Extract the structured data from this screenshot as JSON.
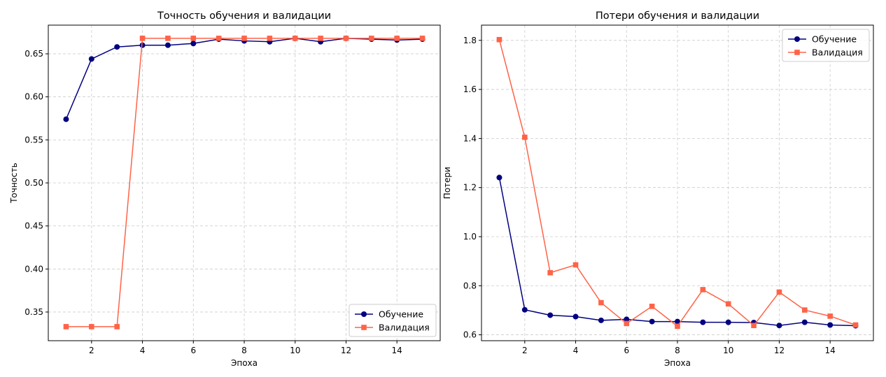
{
  "chart_data": [
    {
      "type": "line",
      "title": "Точность обучения и валидации",
      "xlabel": "Эпоха",
      "ylabel": "Точность",
      "xlim": [
        0.3,
        15.7
      ],
      "ylim": [
        0.3167,
        0.6833
      ],
      "xticks": [
        2,
        4,
        6,
        8,
        10,
        12,
        14
      ],
      "yticks": [
        0.35,
        0.4,
        0.45,
        0.5,
        0.55,
        0.6,
        0.65
      ],
      "ytick_labels": [
        "0.35",
        "0.40",
        "0.45",
        "0.50",
        "0.55",
        "0.60",
        "0.65"
      ],
      "grid": true,
      "legend_position": "lower-right",
      "x": [
        1,
        2,
        3,
        4,
        5,
        6,
        7,
        8,
        9,
        10,
        11,
        12,
        13,
        14,
        15
      ],
      "series": [
        {
          "name": "Обучение",
          "color": "#000080",
          "marker": "circle",
          "values": [
            0.574,
            0.644,
            0.658,
            0.66,
            0.66,
            0.662,
            0.667,
            0.665,
            0.664,
            0.668,
            0.664,
            0.668,
            0.667,
            0.666,
            0.667
          ]
        },
        {
          "name": "Валидация",
          "color": "#ff6347",
          "marker": "square",
          "values": [
            0.333,
            0.333,
            0.333,
            0.668,
            0.668,
            0.668,
            0.668,
            0.668,
            0.668,
            0.668,
            0.668,
            0.668,
            0.668,
            0.668,
            0.668
          ]
        }
      ]
    },
    {
      "type": "line",
      "title": "Потери обучения и валидации",
      "xlabel": "Эпоха",
      "ylabel": "Потери",
      "xlim": [
        0.3,
        15.7
      ],
      "ylim": [
        0.576,
        1.862
      ],
      "xticks": [
        2,
        4,
        6,
        8,
        10,
        12,
        14
      ],
      "yticks": [
        0.6,
        0.8,
        1.0,
        1.2,
        1.4,
        1.6,
        1.8
      ],
      "ytick_labels": [
        "0.6",
        "0.8",
        "1.0",
        "1.2",
        "1.4",
        "1.6",
        "1.8"
      ],
      "grid": true,
      "legend_position": "upper-right",
      "x": [
        1,
        2,
        3,
        4,
        5,
        6,
        7,
        8,
        9,
        10,
        11,
        12,
        13,
        14,
        15
      ],
      "series": [
        {
          "name": "Обучение",
          "color": "#000080",
          "marker": "circle",
          "values": [
            1.241,
            0.702,
            0.68,
            0.674,
            0.659,
            0.663,
            0.654,
            0.654,
            0.651,
            0.651,
            0.65,
            0.638,
            0.651,
            0.64,
            0.637
          ]
        },
        {
          "name": "Валидация",
          "color": "#ff6347",
          "marker": "square",
          "values": [
            1.803,
            1.405,
            0.853,
            0.885,
            0.731,
            0.646,
            0.716,
            0.635,
            0.784,
            0.726,
            0.638,
            0.774,
            0.701,
            0.676,
            0.64
          ]
        }
      ]
    }
  ]
}
